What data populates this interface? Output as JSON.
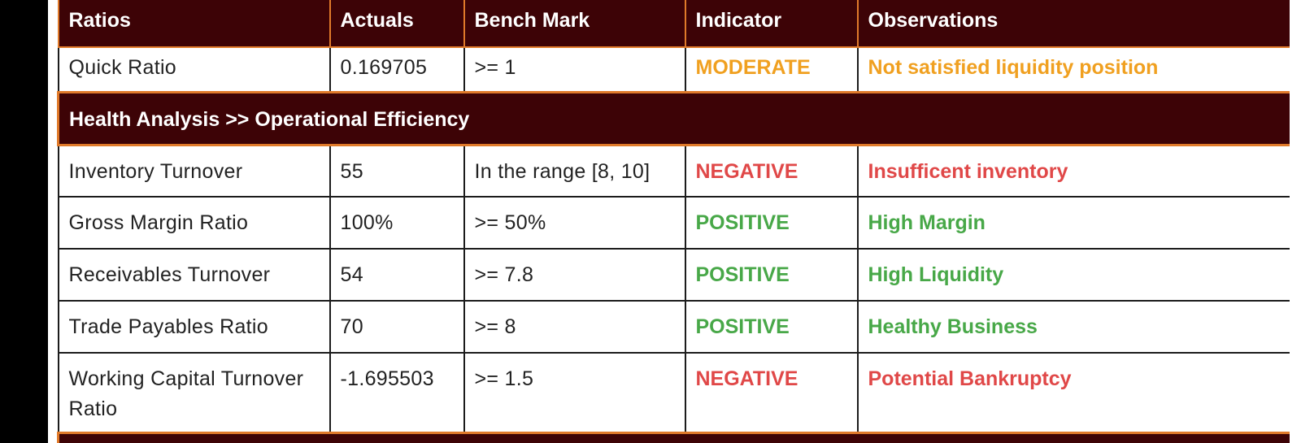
{
  "columns": [
    "Ratios",
    "Actuals",
    "Bench Mark",
    "Indicator",
    "Observations"
  ],
  "rows_top": [
    {
      "ratio": "Quick Ratio",
      "actual": "0.169705",
      "benchmark": ">= 1",
      "indicator": "MODERATE",
      "observation": "Not satisfied liquidity position",
      "status_color": "#f0a020"
    }
  ],
  "section": {
    "title": "Health Analysis >> Operational Efficiency"
  },
  "rows": [
    {
      "ratio": "Inventory Turnover",
      "actual": "55",
      "benchmark": "In the range [8, 10]",
      "indicator": "NEGATIVE",
      "observation": "Insufficent inventory",
      "status_color": "#e04848"
    },
    {
      "ratio": "Gross Margin Ratio",
      "actual": "100%",
      "benchmark": ">= 50%",
      "indicator": "POSITIVE",
      "observation": "High Margin",
      "status_color": "#48a848"
    },
    {
      "ratio": "Receivables Turnover",
      "actual": "54",
      "benchmark": ">= 7.8",
      "indicator": "POSITIVE",
      "observation": "High Liquidity",
      "status_color": "#48a848"
    },
    {
      "ratio": "Trade Payables Ratio",
      "actual": "70",
      "benchmark": ">= 8",
      "indicator": "POSITIVE",
      "observation": "Healthy Business",
      "status_color": "#48a848"
    },
    {
      "ratio": "Working Capital Turnover Ratio",
      "actual": "-1.695503",
      "benchmark": ">= 1.5",
      "indicator": "NEGATIVE",
      "observation": "Potential Bankruptcy",
      "status_color": "#e04848"
    }
  ],
  "colors": {
    "header_bg": "#3d0306",
    "header_border": "#e07a2a",
    "positive": "#48a848",
    "negative": "#e04848",
    "moderate": "#f0a020"
  }
}
